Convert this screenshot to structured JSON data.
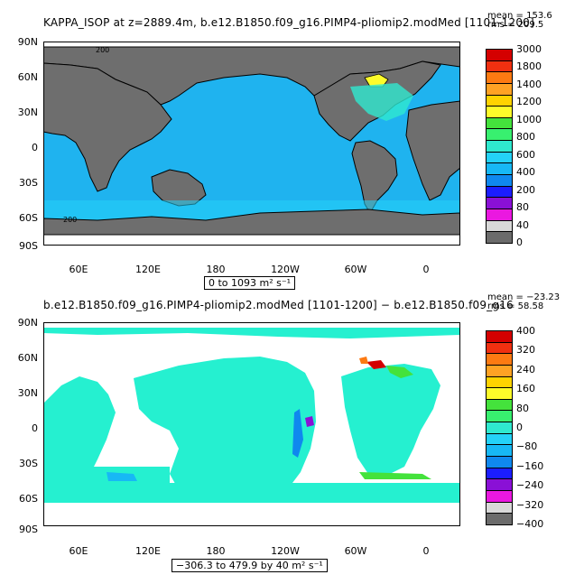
{
  "panels": [
    {
      "title": "KAPPA_ISOP at z=2889.4m, b.e12.B1850.f09_g16.PIMP4-pliomip2.modMed [1101-1200]",
      "stat_mean": "mean = 153.6",
      "stat_rms": "rms = 209.5",
      "range_label": "0 to 1093 m² s⁻¹",
      "lat_ticks": [
        "90N",
        "60N",
        "30N",
        "0",
        "30S",
        "60S",
        "90S"
      ],
      "lon_ticks": [
        "60E",
        "120E",
        "180",
        "120W",
        "60W",
        "0"
      ],
      "contour_labels": [
        "200",
        "200"
      ],
      "colorbar": {
        "labels": [
          "3000",
          "1800",
          "1400",
          "1200",
          "1000",
          "800",
          "600",
          "400",
          "200",
          "80",
          "40",
          "0"
        ],
        "colors": [
          "#d40000",
          "#f03010",
          "#fd7a12",
          "#ffa224",
          "#ffd300",
          "#fdfc2a",
          "#44e23c",
          "#38f06f",
          "#2fe9cf",
          "#24d2f8",
          "#17b8f5",
          "#0f88ee",
          "#1b1dff",
          "#8a10d6",
          "#ea18e0",
          "#d8d8d8",
          "#6b6b6b"
        ]
      }
    },
    {
      "title": "b.e12.B1850.f09_g16.PIMP4-pliomip2.modMed [1101-1200] − b.e12.B1850.f09_g16",
      "stat_mean": "mean = −23.23",
      "stat_rms": "rms = 58.58",
      "range_label": "−306.3 to 479.9 by 40 m² s⁻¹",
      "lat_ticks": [
        "90N",
        "60N",
        "30N",
        "0",
        "30S",
        "60S",
        "90S"
      ],
      "lon_ticks": [
        "60E",
        "120E",
        "180",
        "120W",
        "60W",
        "0"
      ],
      "colorbar": {
        "labels": [
          "400",
          "320",
          "240",
          "160",
          "80",
          "0",
          "−80",
          "−160",
          "−240",
          "−320",
          "−400"
        ],
        "colors": [
          "#d40000",
          "#f03010",
          "#fd7a12",
          "#ffa224",
          "#ffd300",
          "#fdfc2a",
          "#44e23c",
          "#38f06f",
          "#2fe9cf",
          "#24d2f8",
          "#17b8f5",
          "#0f88ee",
          "#1b1dff",
          "#8a10d6",
          "#ea18e0",
          "#d8d8d8",
          "#6b6b6b"
        ]
      }
    }
  ],
  "colors": {
    "land": "#6e6e6e",
    "ocean_top": "#1fb3ef",
    "ocean_bottom": "#25f0d0",
    "blank": "#ffffff",
    "frame": "#000000"
  }
}
